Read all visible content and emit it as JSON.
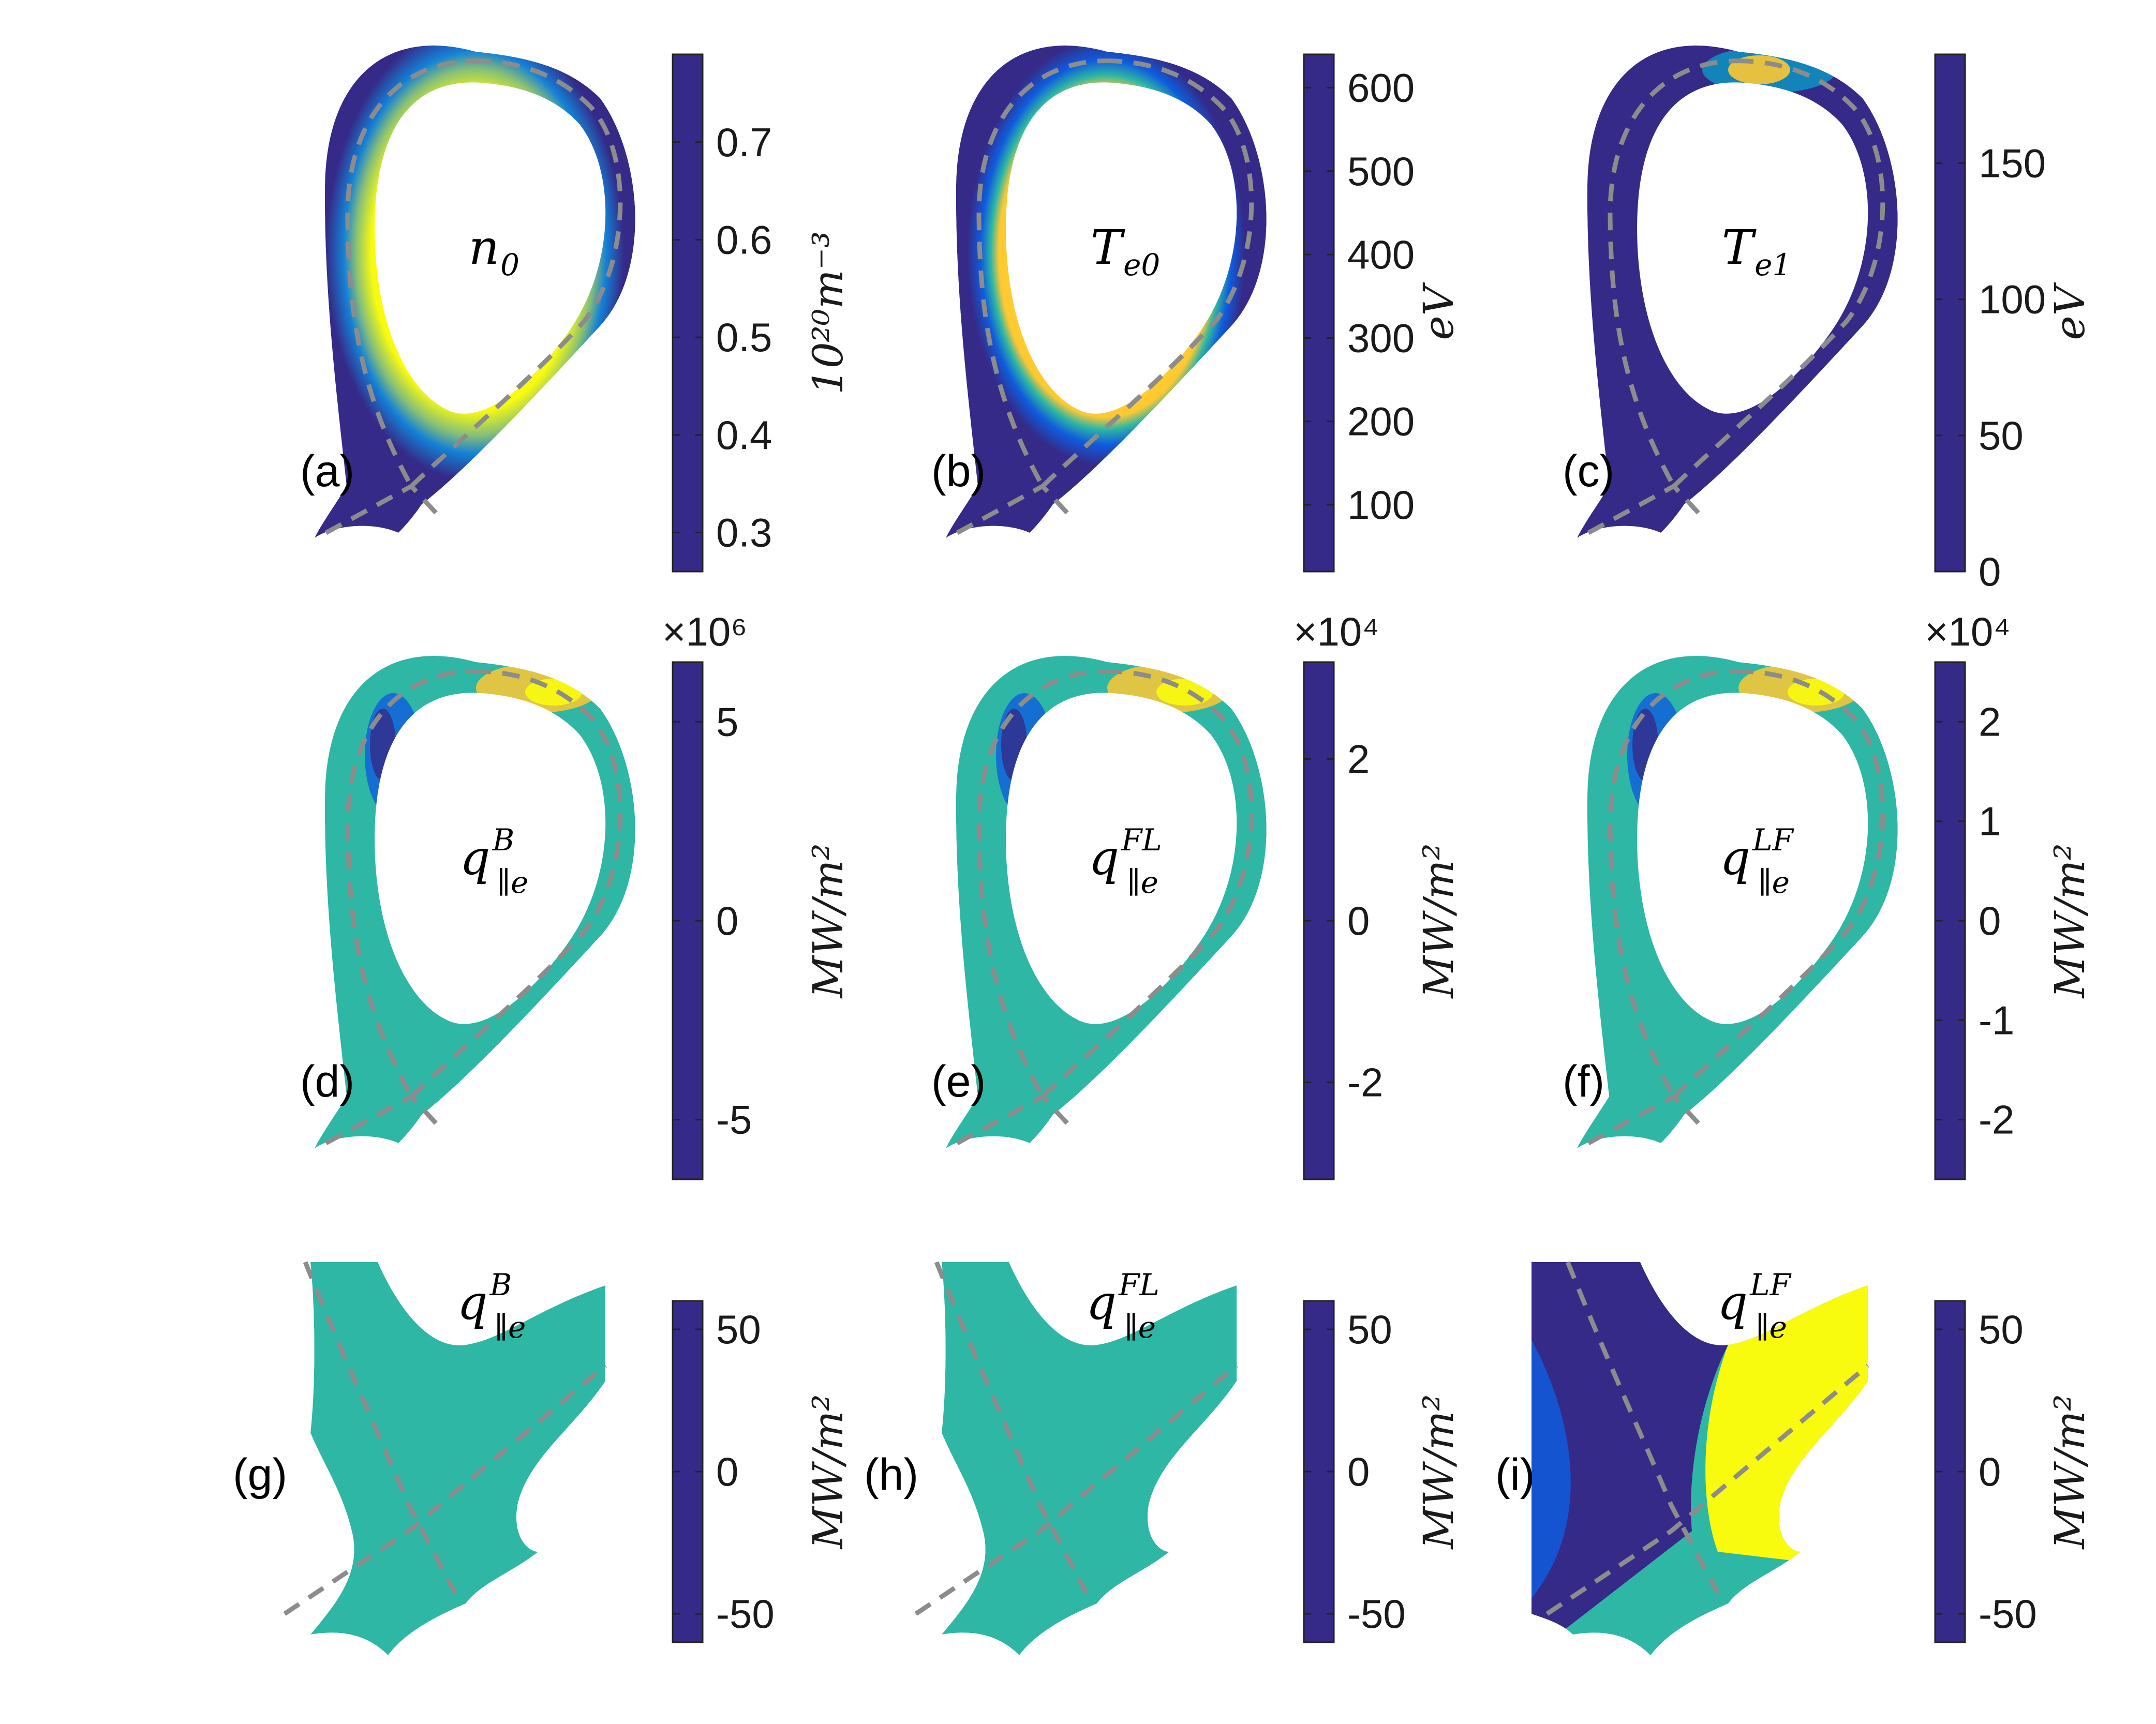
{
  "chart_data": [
    {
      "id": "a",
      "type": "heatmap",
      "panel_label": "(a)",
      "quantity": "n",
      "quantity_sub": "0",
      "quantity_sup": "",
      "colorbar": {
        "ticks": [
          "0.3",
          "0.4",
          "0.5",
          "0.6",
          "0.7"
        ],
        "min": 0.26,
        "max": 0.79,
        "unit_text": "10²⁰m⁻³",
        "exponent": ""
      }
    },
    {
      "id": "b",
      "type": "heatmap",
      "panel_label": "(b)",
      "quantity": "T",
      "quantity_sub": "e0",
      "quantity_sup": "",
      "colorbar": {
        "ticks": [
          "100",
          "200",
          "300",
          "400",
          "500",
          "600"
        ],
        "min": 20,
        "max": 640,
        "unit_text": "eV",
        "exponent": ""
      }
    },
    {
      "id": "c",
      "type": "heatmap",
      "panel_label": "(c)",
      "quantity": "T",
      "quantity_sub": "e1",
      "quantity_sup": "",
      "colorbar": {
        "ticks": [
          "0",
          "50",
          "100",
          "150"
        ],
        "min": 0,
        "max": 190,
        "unit_text": "eV",
        "exponent": ""
      }
    },
    {
      "id": "d",
      "type": "heatmap",
      "panel_label": "(d)",
      "quantity": "q",
      "quantity_sub": "∥e",
      "quantity_sup": "B",
      "colorbar": {
        "ticks": [
          "-5",
          "0",
          "5"
        ],
        "min": -6.5,
        "max": 6.5,
        "unit_text": "MW/m²",
        "exponent": "×10⁶"
      }
    },
    {
      "id": "e",
      "type": "heatmap",
      "panel_label": "(e)",
      "quantity": "q",
      "quantity_sub": "∥e",
      "quantity_sup": "FL",
      "colorbar": {
        "ticks": [
          "-2",
          "0",
          "2"
        ],
        "min": -3.2,
        "max": 3.2,
        "unit_text": "MW/m²",
        "exponent": "×10⁴"
      }
    },
    {
      "id": "f",
      "type": "heatmap",
      "panel_label": "(f)",
      "quantity": "q",
      "quantity_sub": "∥e",
      "quantity_sup": "LF",
      "colorbar": {
        "ticks": [
          "-2",
          "-1",
          "0",
          "1",
          "2"
        ],
        "min": -2.6,
        "max": 2.6,
        "unit_text": "MW/m²",
        "exponent": "×10⁴"
      }
    },
    {
      "id": "g",
      "type": "heatmap",
      "panel_label": "(g)",
      "quantity": "q",
      "quantity_sub": "∥e",
      "quantity_sup": "B",
      "colorbar": {
        "ticks": [
          "-50",
          "0",
          "50"
        ],
        "min": -60,
        "max": 60,
        "unit_text": "MW/m²",
        "exponent": ""
      }
    },
    {
      "id": "h",
      "type": "heatmap",
      "panel_label": "(h)",
      "quantity": "q",
      "quantity_sub": "∥e",
      "quantity_sup": "FL",
      "colorbar": {
        "ticks": [
          "-50",
          "0",
          "50"
        ],
        "min": -60,
        "max": 60,
        "unit_text": "MW/m²",
        "exponent": ""
      }
    },
    {
      "id": "i",
      "type": "heatmap",
      "panel_label": "(i)",
      "quantity": "q",
      "quantity_sub": "∥e",
      "quantity_sup": "LF",
      "colorbar": {
        "ticks": [
          "-50",
          "0",
          "50"
        ],
        "min": -60,
        "max": 60,
        "unit_text": "MW/m²",
        "exponent": ""
      }
    }
  ],
  "colors": {
    "parula": [
      "#352a87",
      "#0f5cdd",
      "#1481d6",
      "#06a4ca",
      "#2eb7a4",
      "#87bf77",
      "#d1bb59",
      "#fec832",
      "#f9fb0e"
    ],
    "separatrix": "#8c8c8c",
    "background": "#ffffff"
  }
}
